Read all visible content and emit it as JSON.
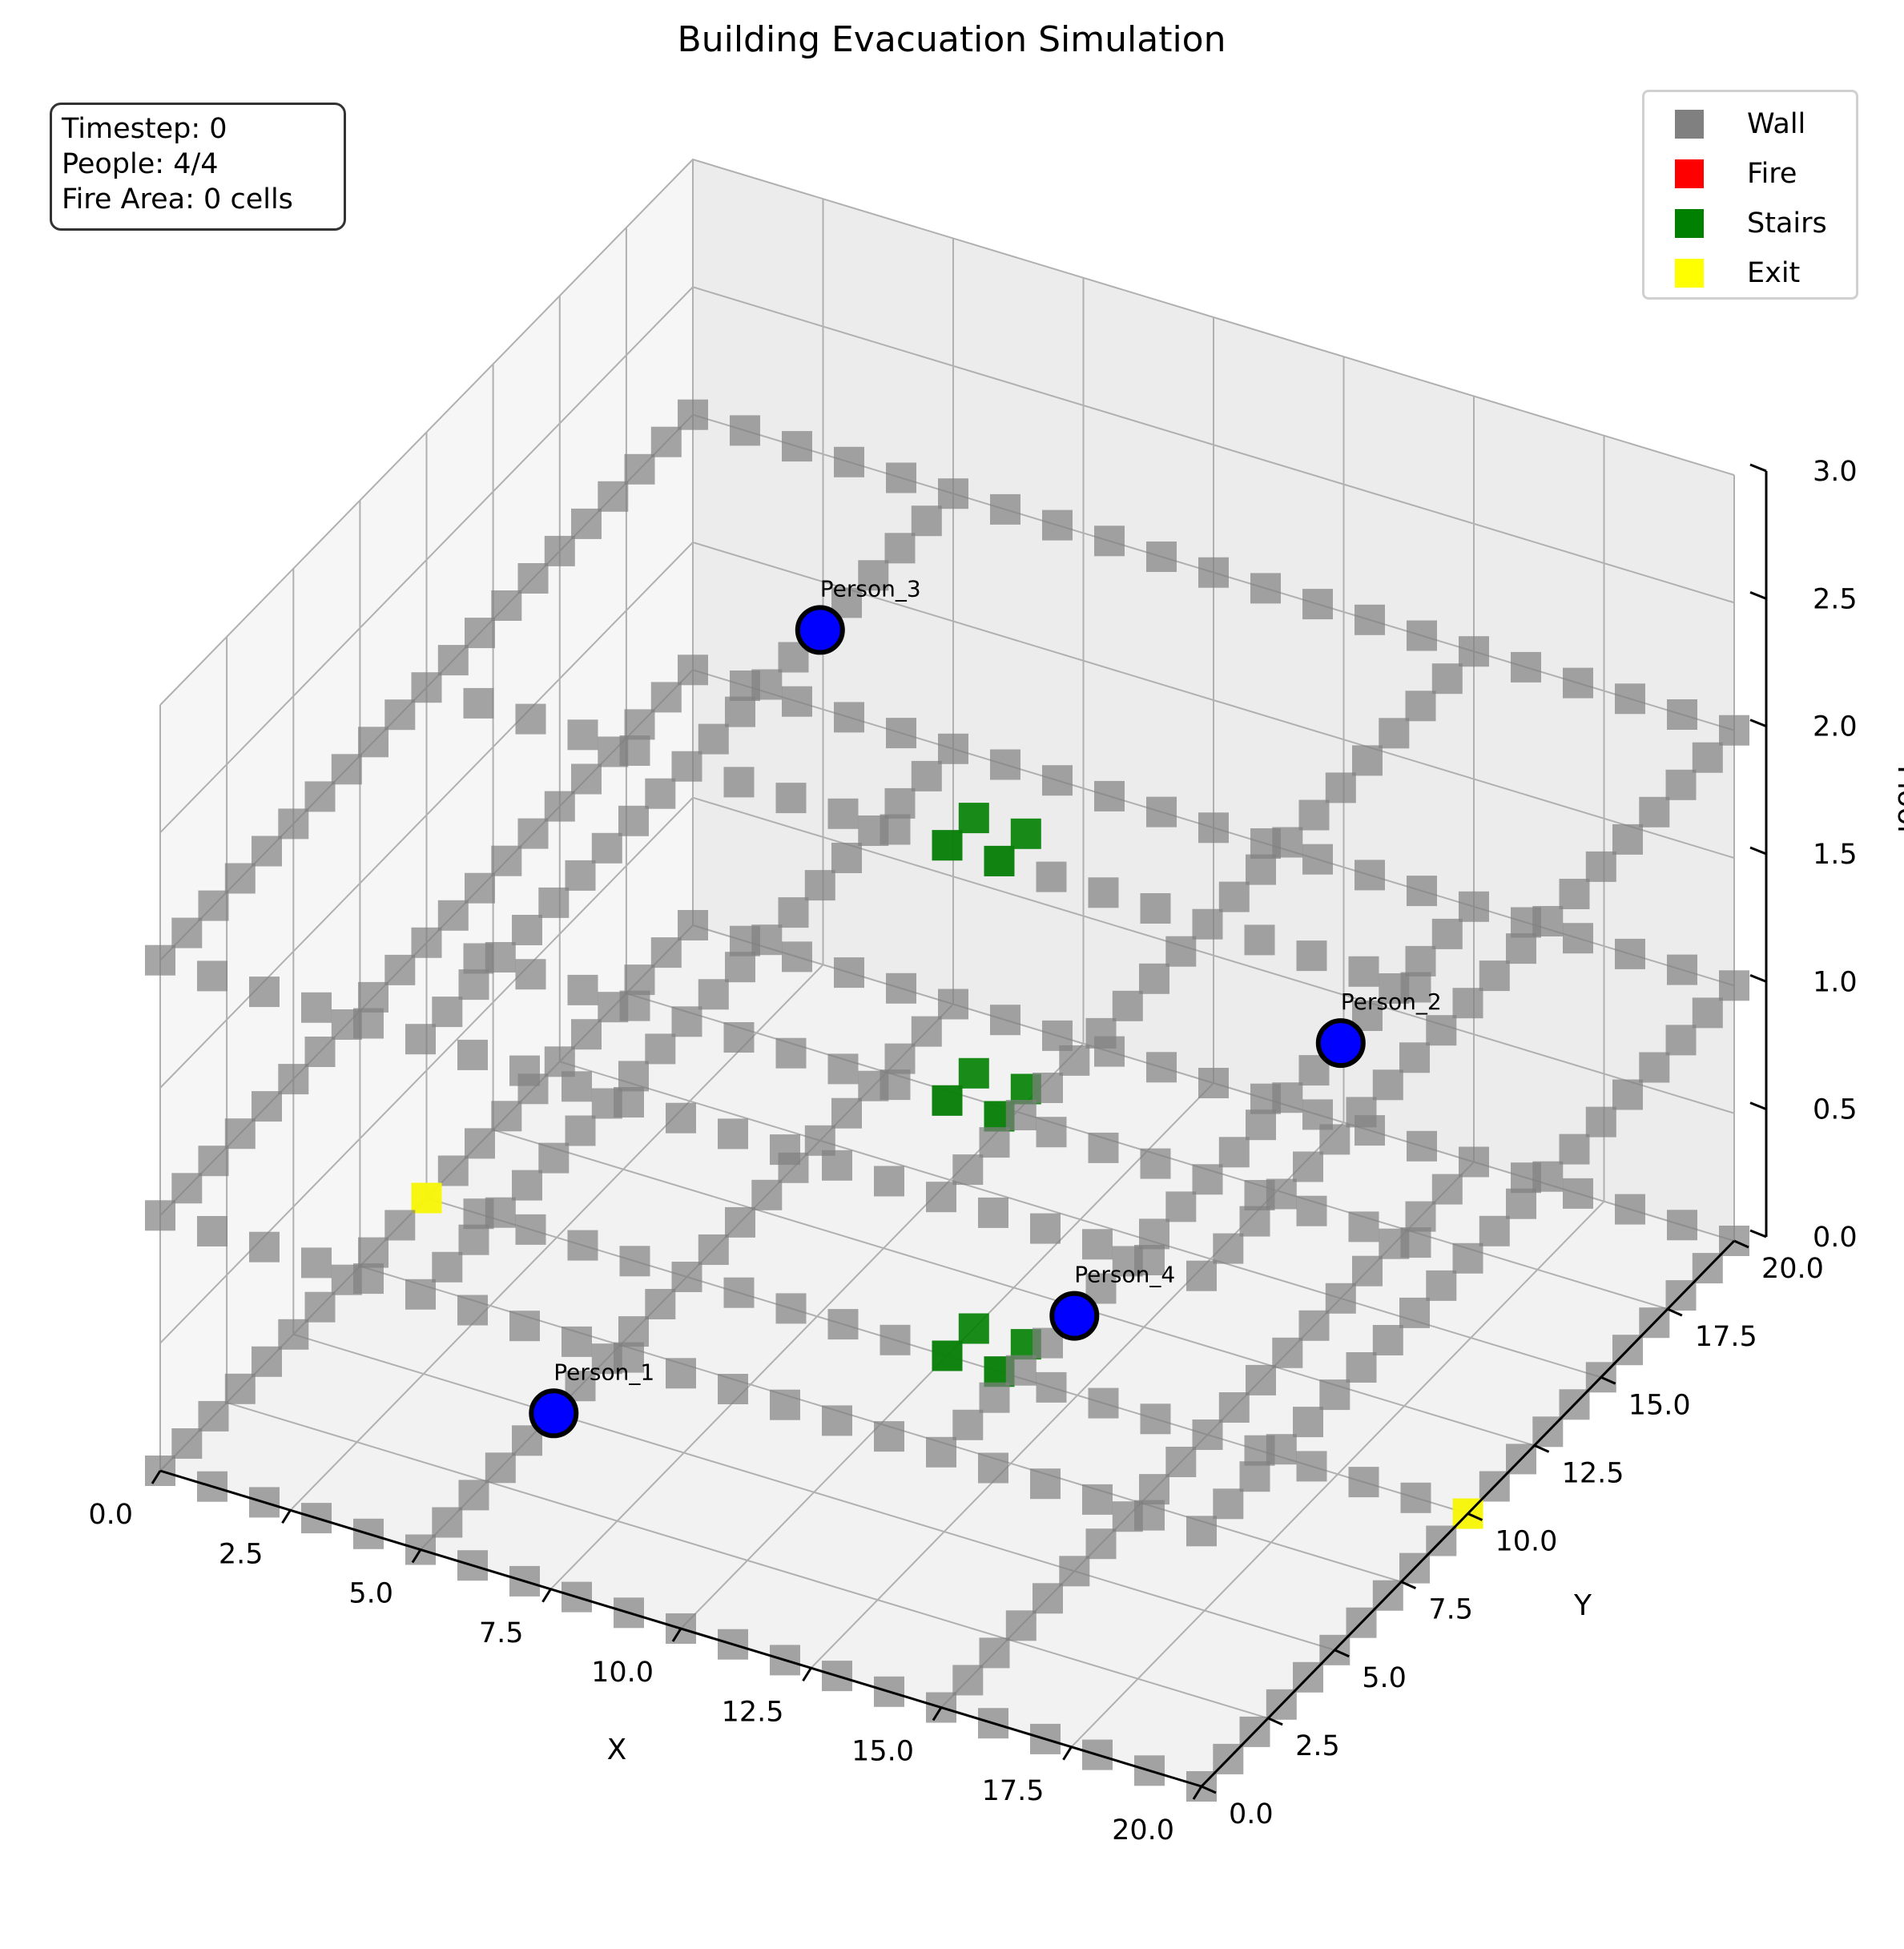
{
  "chart_data": {
    "type": "scatter3d",
    "title": "Building Evacuation Simulation",
    "xlabel": "X",
    "ylabel": "Y",
    "zlabel": "Floor",
    "xlim": [
      0,
      20
    ],
    "ylim": [
      0,
      20
    ],
    "zlim": [
      0,
      3
    ],
    "x_ticks": [
      "0.0",
      "2.5",
      "5.0",
      "7.5",
      "10.0",
      "12.5",
      "15.0",
      "17.5",
      "20.0"
    ],
    "y_ticks": [
      "0.0",
      "2.5",
      "5.0",
      "7.5",
      "10.0",
      "12.5",
      "15.0",
      "17.5",
      "20.0"
    ],
    "z_ticks": [
      "0.0",
      "0.5",
      "1.0",
      "1.5",
      "2.0",
      "2.5",
      "3.0"
    ],
    "grid": true,
    "legend_position": "top-right",
    "legend": [
      {
        "label": "Wall",
        "color": "#808080"
      },
      {
        "label": "Fire",
        "color": "#ff0000"
      },
      {
        "label": "Stairs",
        "color": "#008000"
      },
      {
        "label": "Exit",
        "color": "#ffff00"
      }
    ],
    "floors": [
      0,
      1,
      2
    ],
    "walls_note_color": "#808080",
    "inner_walls": [
      {
        "axis": "x",
        "at": 5,
        "from": 0,
        "to": 20
      },
      {
        "axis": "y",
        "at": 10,
        "from": 0,
        "to": 20
      },
      {
        "axis": "x",
        "at": 15,
        "from": 0,
        "to": 20
      }
    ],
    "stairs": [
      {
        "x": 10,
        "y": 10
      },
      {
        "x": 10,
        "y": 11
      },
      {
        "x": 11,
        "y": 10
      },
      {
        "x": 11,
        "y": 11
      }
    ],
    "exits": [
      {
        "x": 0,
        "y": 10,
        "z": 0
      },
      {
        "x": 20,
        "y": 10,
        "z": 0
      }
    ],
    "people": [
      {
        "name": "Person_1",
        "x": 5,
        "y": 5,
        "z": 0
      },
      {
        "name": "Person_2",
        "x": 15,
        "y": 15,
        "z": 1
      },
      {
        "name": "Person_3",
        "x": 5,
        "y": 15,
        "z": 2
      },
      {
        "name": "Person_4",
        "x": 15,
        "y": 5,
        "z": 1
      }
    ],
    "fire": []
  },
  "status": {
    "timestep_line": "Timestep: 0",
    "people_line": "People: 4/4",
    "fire_line": "Fire Area: 0 cells"
  }
}
